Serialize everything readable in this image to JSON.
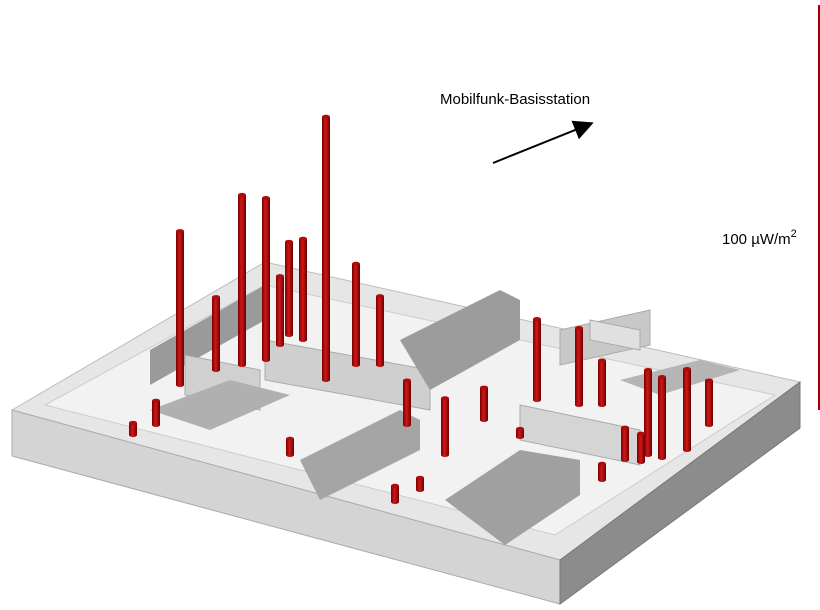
{
  "annotation": "Mobilfunk-Basisstation",
  "scale": {
    "value": 100,
    "label": "100 µW/m",
    "superscript": "2",
    "color": "#a00000"
  },
  "cylinders": {
    "color": "#b00a0a",
    "values": [
      38,
      18,
      42,
      40,
      23,
      25,
      17,
      65,
      25,
      17,
      11,
      14,
      8,
      20,
      19,
      11,
      21,
      20,
      20,
      11,
      8,
      7,
      6,
      3,
      4,
      4,
      3,
      4,
      2
    ]
  }
}
